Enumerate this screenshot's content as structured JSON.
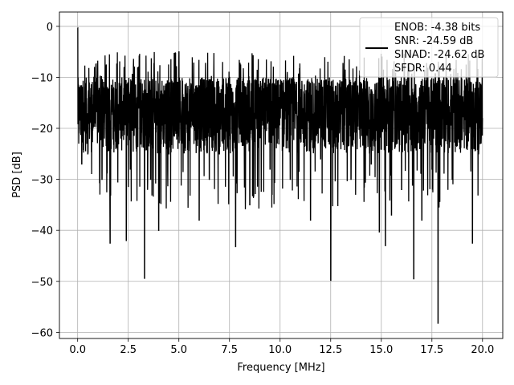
{
  "chart_data": {
    "type": "line",
    "title": "",
    "xlabel": "Frequency [MHz]",
    "ylabel": "PSD [dB]",
    "xlim": [
      -0.9,
      21.0
    ],
    "ylim": [
      -61.2,
      2.8
    ],
    "xticks": [
      0.0,
      2.5,
      5.0,
      7.5,
      10.0,
      12.5,
      15.0,
      17.5,
      20.0
    ],
    "xtick_labels": [
      "0.0",
      "2.5",
      "5.0",
      "7.5",
      "10.0",
      "12.5",
      "15.0",
      "17.5",
      "20.0"
    ],
    "yticks": [
      0,
      -10,
      -20,
      -30,
      -40,
      -50,
      -60
    ],
    "ytick_labels": [
      "0",
      "−10",
      "−20",
      "−30",
      "−40",
      "−50",
      "−60"
    ],
    "grid": true,
    "legend_position": "top-right",
    "series": [
      {
        "color": "#000000",
        "noise_floor_db": [
          -10,
          -30
        ],
        "x": [
          0.0,
          0.05,
          0.1,
          0.2,
          0.3,
          0.5,
          0.8,
          1.2,
          1.6,
          2.0,
          2.4,
          2.6,
          3.0,
          3.3,
          3.6,
          4.0,
          4.5,
          5.0,
          5.5,
          6.0,
          6.5,
          7.0,
          7.5,
          7.8,
          8.0,
          8.5,
          9.0,
          9.5,
          10.0,
          10.5,
          11.0,
          11.5,
          12.0,
          12.5,
          13.0,
          13.5,
          14.0,
          14.5,
          14.9,
          15.2,
          15.5,
          16.0,
          16.6,
          17.0,
          17.5,
          17.8,
          18.0,
          18.5,
          19.0,
          19.5,
          19.8,
          20.0
        ],
        "y": [
          -0.3,
          -23,
          -12,
          -27,
          -15,
          -25,
          -10,
          -30,
          -42.5,
          -22,
          -42,
          -28,
          -8,
          -49.4,
          -30,
          -40,
          -25,
          -5,
          -20,
          -38,
          -30,
          -25,
          -10,
          -43.2,
          -20,
          -35,
          -12,
          -28,
          -18,
          -30,
          -22,
          -38,
          -26,
          -49.8,
          -24,
          -30,
          -20,
          -27,
          -40.3,
          -43,
          -37,
          -32,
          -49.5,
          -38,
          -28,
          -58.2,
          -22,
          -30,
          -20,
          -42.5,
          -25,
          -18
        ],
        "legend_lines": [
          "ENOB: -4.38 bits",
          "SNR: -24.59 dB",
          "SINAD: -24.62 dB",
          "SFDR: 0.44"
        ]
      }
    ]
  }
}
